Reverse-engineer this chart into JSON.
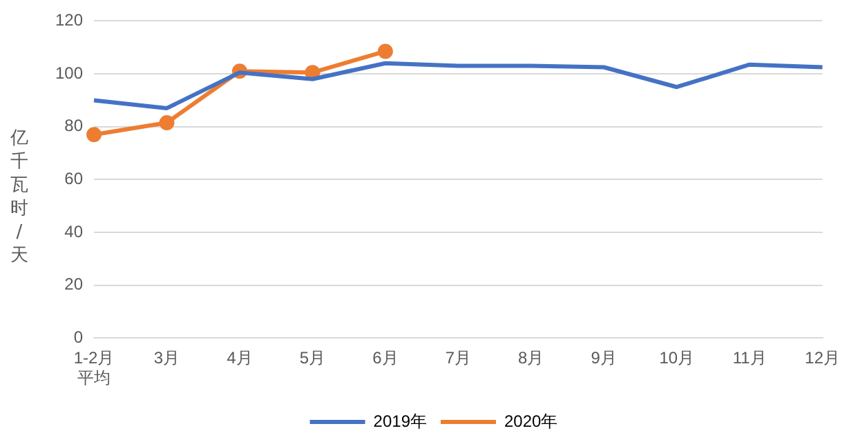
{
  "chart_data": {
    "type": "line",
    "ylabel": "亿千瓦时/天",
    "categories": [
      "1-2月平均",
      "3月",
      "4月",
      "5月",
      "6月",
      "7月",
      "8月",
      "9月",
      "10月",
      "11月",
      "12月"
    ],
    "series": [
      {
        "name": "2019年",
        "color": "#4472c4",
        "marker": "none",
        "values": [
          90,
          87,
          100.5,
          98,
          104,
          103,
          103,
          102.5,
          95,
          103.5,
          102.5
        ]
      },
      {
        "name": "2020年",
        "color": "#ed7d31",
        "marker": "circle",
        "values": [
          77,
          81.5,
          101,
          100.5,
          108.5,
          null,
          null,
          null,
          null,
          null,
          null
        ]
      }
    ],
    "ylim": [
      0,
      120
    ],
    "yticks": [
      0,
      20,
      40,
      60,
      80,
      100,
      120
    ],
    "grid": "y",
    "legend": "bottom",
    "line_style": "solid"
  }
}
